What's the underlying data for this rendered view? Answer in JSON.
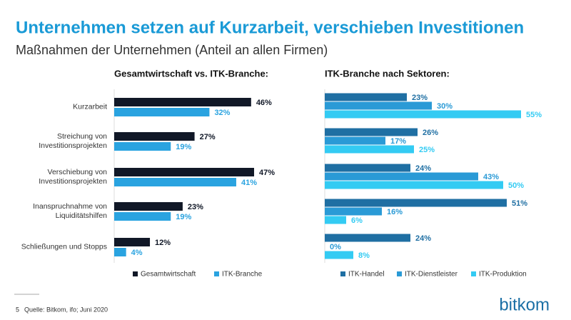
{
  "title": "Unternehmen setzen auf Kurzarbeit, verschieben Investitionen",
  "subtitle": "Maßnahmen der Unternehmen (Anteil an allen Firmen)",
  "page_number": "5",
  "source": "Quelle: Bitkom, ifo;  Juni 2020",
  "logo": "bitkom",
  "chart_data": [
    {
      "type": "hbar",
      "title": "Gesamtwirtschaft vs. ITK-Branche:",
      "categories": [
        "Kurzarbeit",
        "Streichung von\nInvestitionsprojekten",
        "Verschiebung von\nInvestitionsprojekten",
        "Inanspruchnahme von\nLiquiditätshilfen",
        "Schließungen und Stopps"
      ],
      "legend": "bottom",
      "series": [
        {
          "name": "Gesamtwirtschaft",
          "color": "#111827",
          "values": [
            46,
            27,
            47,
            23,
            12
          ],
          "value_labels": [
            "46%",
            "27%",
            "47%",
            "23%",
            "12%"
          ]
        },
        {
          "name": "ITK-Branche",
          "color": "#2aa3e0",
          "values": [
            32,
            19,
            41,
            19,
            4
          ],
          "value_labels": [
            "32%",
            "19%",
            "41%",
            "19%",
            "4%"
          ]
        }
      ]
    },
    {
      "type": "hbar",
      "title": "ITK-Branche nach Sektoren:",
      "legend": "bottom",
      "series": [
        {
          "name": "ITK-Handel",
          "color": "#1f6fa3",
          "values": [
            23,
            26,
            24,
            51,
            24
          ],
          "value_labels": [
            "23%",
            "26%",
            "24%",
            "51%",
            "24%"
          ]
        },
        {
          "name": "ITK-Dienstleister",
          "color": "#2a9ad6",
          "values": [
            30,
            17,
            43,
            16,
            0
          ],
          "value_labels": [
            "30%",
            "17%",
            "43%",
            "16%",
            "0%"
          ]
        },
        {
          "name": "ITK-Produktion",
          "color": "#33cbf3",
          "values": [
            55,
            25,
            50,
            6,
            8
          ],
          "value_labels": [
            "55%",
            "25%",
            "50%",
            "6%",
            "8%"
          ]
        }
      ]
    }
  ]
}
